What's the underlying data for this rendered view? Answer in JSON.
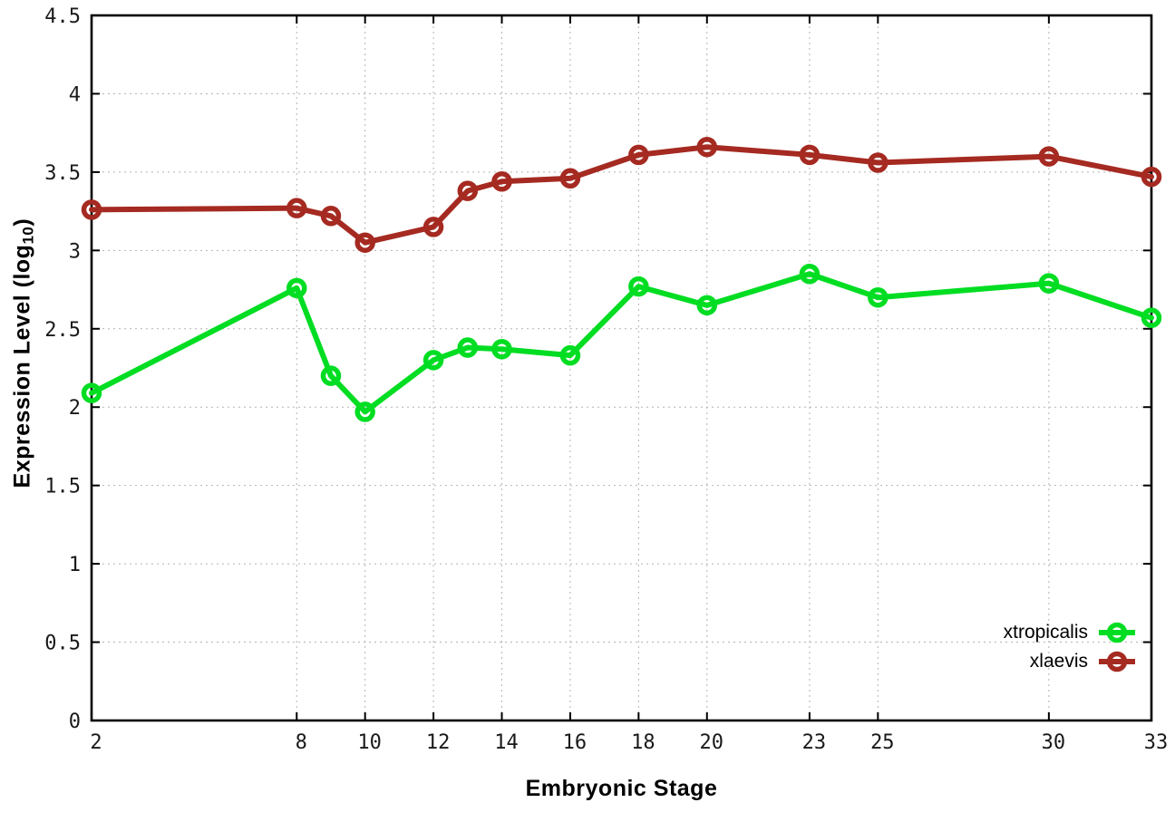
{
  "chart_data": {
    "type": "line",
    "title": "",
    "xlabel": "Embryonic Stage",
    "ylabel": "Expression Level (log10)",
    "ylabel_parts": {
      "prefix": "Expression Level (log",
      "sub": "10",
      "suffix": ")"
    },
    "x": [
      2,
      8,
      9,
      10,
      12,
      13,
      14,
      16,
      18,
      20,
      23,
      25,
      30,
      33
    ],
    "series": [
      {
        "name": "xtropicalis",
        "color": "#00dd22",
        "values": [
          2.09,
          2.76,
          2.2,
          1.97,
          2.3,
          2.38,
          2.37,
          2.33,
          2.77,
          2.65,
          2.85,
          2.7,
          2.79,
          2.57
        ]
      },
      {
        "name": "xlaevis",
        "color": "#a52a21",
        "values": [
          3.26,
          3.27,
          3.22,
          3.05,
          3.15,
          3.38,
          3.44,
          3.46,
          3.61,
          3.66,
          3.61,
          3.56,
          3.6,
          3.47
        ]
      }
    ],
    "x_ticks": [
      2,
      8,
      10,
      12,
      14,
      16,
      18,
      20,
      23,
      25,
      30,
      33
    ],
    "x_tick_labels": [
      "2",
      "8",
      "10",
      "12",
      "14",
      "16",
      "18",
      "20",
      "23",
      "25",
      "30",
      "33"
    ],
    "y_ticks": [
      0,
      0.5,
      1,
      1.5,
      2,
      2.5,
      3,
      3.5,
      4,
      4.5
    ],
    "y_tick_labels": [
      "0",
      "0.5",
      "1",
      "1.5",
      "2",
      "2.5",
      "3",
      "3.5",
      "4",
      "4.5"
    ],
    "xlim": [
      2,
      33
    ],
    "ylim": [
      0,
      4.5
    ],
    "grid": true,
    "legend_position": "bottom-right",
    "colors": {
      "frame": "#000000",
      "grid": "#b3b3b3",
      "tick_text": "#1a1a1a",
      "background": "#ffffff"
    }
  }
}
